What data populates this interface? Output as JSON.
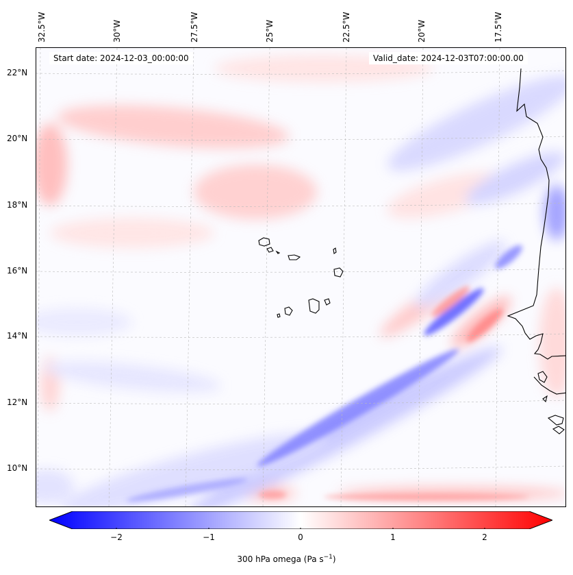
{
  "map": {
    "start_date": "Start date: 2024-12-03_00:00:00",
    "valid_date": "Valid_date: 2024-12-03T07:00:00.00",
    "lon_labels": [
      "32.5°W",
      "30°W",
      "27.5°W",
      "25°W",
      "22.5°W",
      "20°W",
      "17.5°W"
    ],
    "lat_labels": [
      "22°N",
      "20°N",
      "18°N",
      "16°N",
      "14°N",
      "12°N",
      "10°N"
    ],
    "features": [
      "Cape Verde Islands",
      "West African coastline"
    ]
  },
  "colorbar": {
    "ticks": [
      "−2",
      "−1",
      "0",
      "1",
      "2"
    ],
    "label_main": "300 hPa omega (Pa s",
    "label_sup": "−1",
    "label_end": ")",
    "min_color": "#0000ff",
    "mid_color": "#ffffff",
    "max_color": "#ff0000"
  }
}
